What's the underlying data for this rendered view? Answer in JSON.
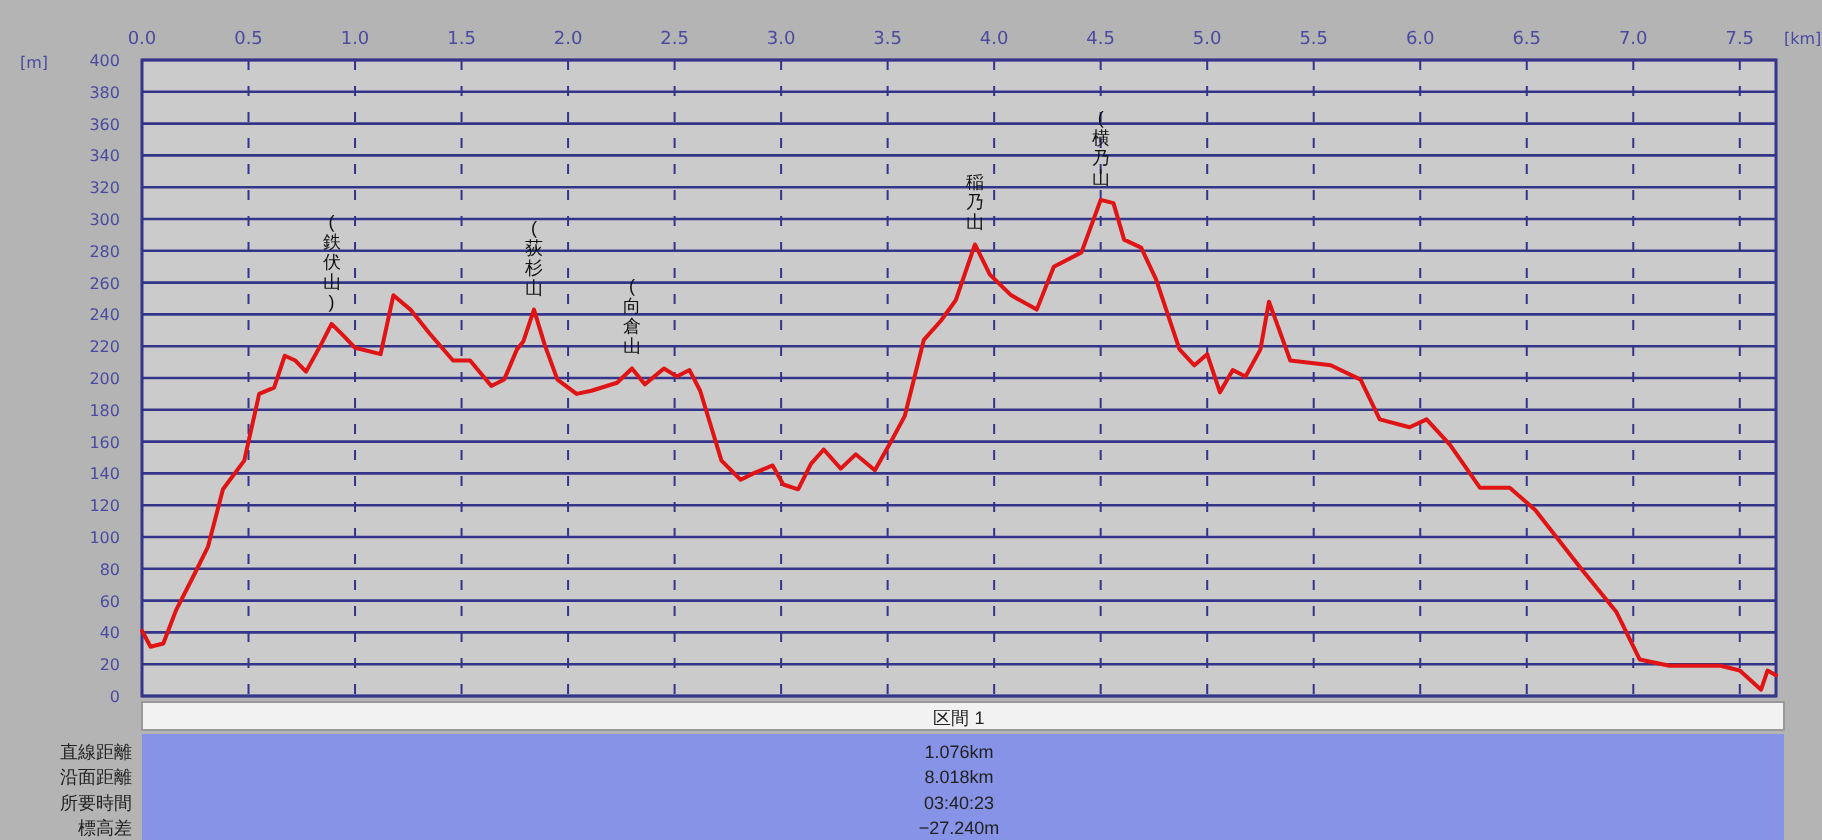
{
  "chart_data": {
    "type": "line",
    "xlabel": "[km]",
    "ylabel": "[m]",
    "color": "#e01414",
    "grid": true,
    "xlim": [
      0,
      7.67
    ],
    "ylim": [
      0,
      400
    ],
    "xticks": [
      {
        "value": 0,
        "label": "0.0"
      },
      {
        "value": 0.5,
        "label": "0.5"
      },
      {
        "value": 1,
        "label": "1.0"
      },
      {
        "value": 1.5,
        "label": "1.5"
      },
      {
        "value": 2,
        "label": "2.0"
      },
      {
        "value": 2.5,
        "label": "2.5"
      },
      {
        "value": 3,
        "label": "3.0"
      },
      {
        "value": 3.5,
        "label": "3.5"
      },
      {
        "value": 4,
        "label": "4.0"
      },
      {
        "value": 4.5,
        "label": "4.5"
      },
      {
        "value": 5,
        "label": "5.0"
      },
      {
        "value": 5.5,
        "label": "5.5"
      },
      {
        "value": 6,
        "label": "6.0"
      },
      {
        "value": 6.5,
        "label": "6.5"
      },
      {
        "value": 7,
        "label": "7.0"
      },
      {
        "value": 7.5,
        "label": "7.5"
      }
    ],
    "yticks": [
      0,
      20,
      40,
      60,
      80,
      100,
      120,
      140,
      160,
      180,
      200,
      220,
      240,
      260,
      280,
      300,
      320,
      340,
      360,
      380,
      400
    ],
    "x": [
      0,
      0.04,
      0.1,
      0.16,
      0.24,
      0.31,
      0.38,
      0.48,
      0.55,
      0.62,
      0.67,
      0.72,
      0.77,
      0.84,
      0.89,
      0.95,
      1.0,
      1.12,
      1.18,
      1.26,
      1.35,
      1.46,
      1.54,
      1.64,
      1.7,
      1.76,
      1.79,
      1.84,
      1.89,
      1.95,
      2.04,
      2.11,
      2.23,
      2.3,
      2.36,
      2.45,
      2.51,
      2.57,
      2.62,
      2.72,
      2.81,
      2.87,
      2.96,
      3.01,
      3.08,
      3.14,
      3.2,
      3.28,
      3.35,
      3.44,
      3.52,
      3.58,
      3.67,
      3.75,
      3.82,
      3.91,
      3.98,
      4.08,
      4.2,
      4.28,
      4.41,
      4.5,
      4.56,
      4.61,
      4.69,
      4.76,
      4.87,
      4.94,
      5.0,
      5.06,
      5.12,
      5.18,
      5.25,
      5.29,
      5.39,
      5.58,
      5.72,
      5.81,
      5.95,
      6.03,
      6.14,
      6.28,
      6.42,
      6.54,
      6.75,
      6.92,
      7.03,
      7.17,
      7.41,
      7.5,
      7.6,
      7.63,
      7.67
    ],
    "values": [
      41,
      31,
      33,
      54,
      75,
      94,
      130,
      148,
      190,
      194,
      214,
      211,
      204,
      221,
      234,
      226,
      219,
      215,
      252,
      243,
      228,
      211,
      211,
      195,
      199,
      218,
      223,
      243,
      221,
      199,
      190,
      192,
      197,
      206,
      196,
      206,
      201,
      205,
      192,
      148,
      136,
      140,
      145,
      133,
      130,
      146,
      155,
      143,
      152,
      142,
      161,
      176,
      224,
      236,
      249,
      284,
      265,
      252,
      243,
      270,
      279,
      312,
      310,
      287,
      282,
      262,
      218,
      208,
      215,
      191,
      205,
      201,
      218,
      248,
      211,
      208,
      199,
      174,
      169,
      174,
      158,
      131,
      131,
      117,
      81,
      53,
      23,
      19,
      19,
      16,
      4,
      16,
      13
    ],
    "annotations": [
      {
        "text": "(鉄伏山)",
        "x": 0.89,
        "y": 234
      },
      {
        "text": "(荻杉山",
        "x": 1.84,
        "y": 243
      },
      {
        "text": "(向倉山",
        "x": 2.3,
        "y": 206
      },
      {
        "text": "稲乃山",
        "x": 3.91,
        "y": 284
      },
      {
        "text": "(横乃山",
        "x": 4.5,
        "y": 312
      },
      "区間 1",
      "直線距離",
      "1.076km",
      "沿面距離",
      "8.018km",
      "所要時間",
      "03:40:23",
      "標高差",
      "−27.240m"
    ]
  }
}
